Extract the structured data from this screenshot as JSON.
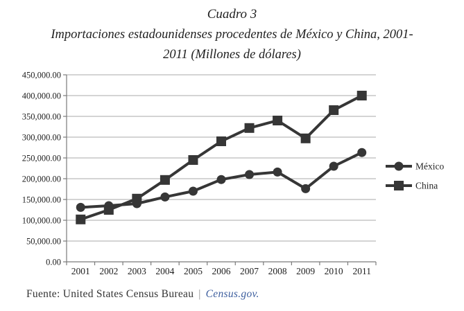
{
  "title": "Cuadro 3",
  "subtitle_line1": "Importaciones estadounidenses procedentes de México y China, 2001-",
  "subtitle_line2": "2011 (Millones de dólares)",
  "chart_data": {
    "type": "line",
    "title": "Cuadro 3",
    "subtitle": "Importaciones estadounidenses procedentes de México y China, 2001-2011 (Millones de dólares)",
    "categories": [
      "2001",
      "2002",
      "2003",
      "2004",
      "2005",
      "2006",
      "2007",
      "2008",
      "2009",
      "2010",
      "2011"
    ],
    "series": [
      {
        "name": "México",
        "marker": "circle",
        "values": [
          131000,
          135000,
          140000,
          156000,
          170000,
          198000,
          210000,
          216000,
          176000,
          230000,
          263000
        ]
      },
      {
        "name": "China",
        "marker": "square",
        "values": [
          102000,
          125000,
          152000,
          197000,
          245000,
          290000,
          322000,
          340000,
          297000,
          365000,
          400000
        ]
      }
    ],
    "xlabel": "",
    "ylabel": "",
    "ylim": [
      0,
      450000
    ],
    "ytick_step": 50000,
    "ytick_labels": [
      "0.00",
      "50,000.00",
      "100,000.00",
      "150,000.00",
      "200,000.00",
      "250,000.00",
      "300,000.00",
      "350,000.00",
      "400,000.00",
      "450,000.00"
    ],
    "grid": true,
    "legend_position": "right",
    "series_color": "#363636",
    "grid_color": "#a9a9a9",
    "axis_color": "#7a7a7a"
  },
  "footer": {
    "source_label": "Fuente: United States Census Bureau",
    "separator": "|",
    "link_text": "Census.gov.",
    "link_color": "#3d5e9e"
  }
}
